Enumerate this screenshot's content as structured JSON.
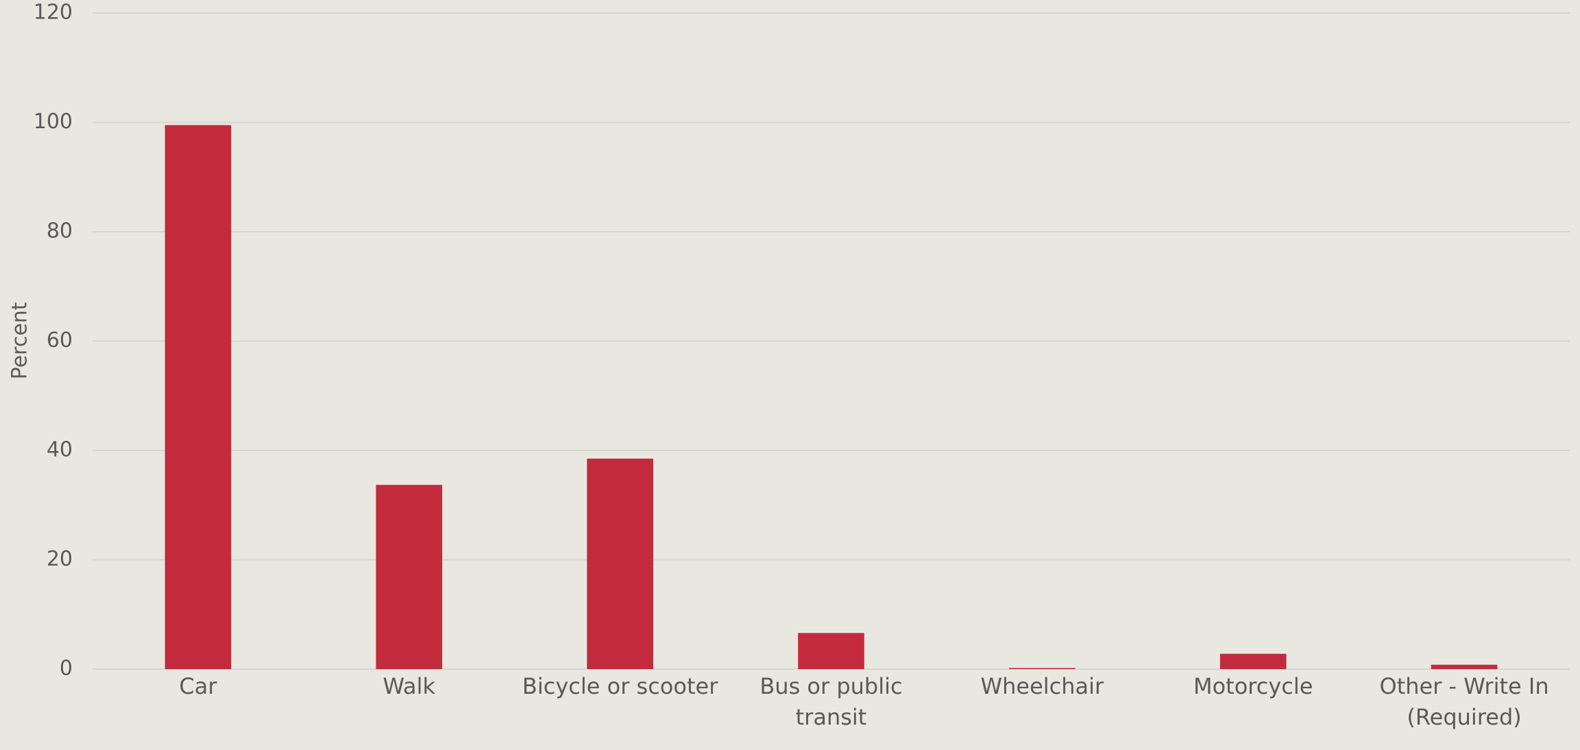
{
  "chart_data": {
    "type": "bar",
    "y_label": "Percent",
    "categories": [
      "Car",
      "Walk",
      "Bicycle or scooter",
      "Bus or public transit",
      "Wheelchair",
      "Motorcycle",
      "Other - Write In (Required)"
    ],
    "values": [
      99.5,
      33.7,
      38.5,
      6.6,
      0.2,
      2.8,
      0.8
    ],
    "color": "#c32b3c",
    "ylim": [
      0,
      120
    ],
    "yticks": [
      0,
      20,
      40,
      60,
      80,
      100,
      120
    ],
    "grid": true
  }
}
